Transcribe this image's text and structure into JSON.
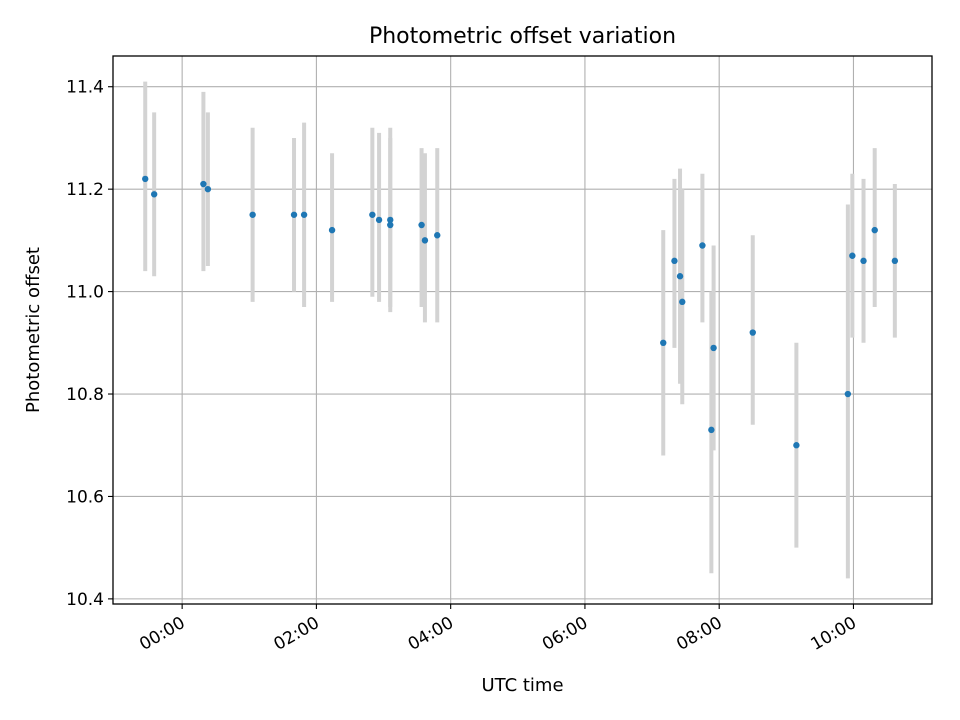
{
  "chart_data": {
    "type": "scatter",
    "title": "Photometric offset variation",
    "xlabel": "UTC time",
    "ylabel": "Photometric offset",
    "x_axis_type": "time",
    "x_tick_labels": [
      "00:00",
      "02:00",
      "04:00",
      "06:00",
      "08:00",
      "10:00"
    ],
    "x_ticks_hours": [
      0,
      2,
      4,
      6,
      8,
      10
    ],
    "y_ticks": [
      10.4,
      10.6,
      10.8,
      11.0,
      11.2,
      11.4
    ],
    "y_tick_labels": [
      "10.4",
      "10.6",
      "10.8",
      "11.0",
      "11.2",
      "11.4"
    ],
    "xlim_hours": [
      -1.03,
      11.17
    ],
    "ylim": [
      10.39,
      11.46
    ],
    "grid": true,
    "point_color": "#1f77b4",
    "errorbar_color": "#d3d3d3",
    "series": [
      {
        "points": [
          {
            "x": "23:27",
            "y": 11.22,
            "lo": 11.04,
            "hi": 11.41
          },
          {
            "x": "23:35",
            "y": 11.19,
            "lo": 11.03,
            "hi": 11.35
          },
          {
            "x": "00:19",
            "y": 11.21,
            "lo": 11.04,
            "hi": 11.39
          },
          {
            "x": "00:23",
            "y": 11.2,
            "lo": 11.05,
            "hi": 11.35
          },
          {
            "x": "01:03",
            "y": 11.15,
            "lo": 10.98,
            "hi": 11.32
          },
          {
            "x": "01:40",
            "y": 11.15,
            "lo": 11.0,
            "hi": 11.3
          },
          {
            "x": "01:49",
            "y": 11.15,
            "lo": 10.97,
            "hi": 11.33
          },
          {
            "x": "02:14",
            "y": 11.12,
            "lo": 10.98,
            "hi": 11.27
          },
          {
            "x": "02:50",
            "y": 11.15,
            "lo": 10.99,
            "hi": 11.32
          },
          {
            "x": "02:56",
            "y": 11.14,
            "lo": 10.98,
            "hi": 11.31
          },
          {
            "x": "03:06",
            "y": 11.14,
            "lo": 10.97,
            "hi": 11.32
          },
          {
            "x": "03:06",
            "y": 11.13,
            "lo": 10.96,
            "hi": 11.3
          },
          {
            "x": "03:34",
            "y": 11.13,
            "lo": 10.97,
            "hi": 11.28
          },
          {
            "x": "03:37",
            "y": 11.1,
            "lo": 10.94,
            "hi": 11.27
          },
          {
            "x": "03:48",
            "y": 11.11,
            "lo": 10.94,
            "hi": 11.28
          },
          {
            "x": "07:10",
            "y": 10.9,
            "lo": 10.68,
            "hi": 11.12
          },
          {
            "x": "07:20",
            "y": 11.06,
            "lo": 10.89,
            "hi": 11.22
          },
          {
            "x": "07:25",
            "y": 11.03,
            "lo": 10.82,
            "hi": 11.24
          },
          {
            "x": "07:27",
            "y": 10.98,
            "lo": 10.78,
            "hi": 11.2
          },
          {
            "x": "07:45",
            "y": 11.09,
            "lo": 10.94,
            "hi": 11.23
          },
          {
            "x": "07:53",
            "y": 10.73,
            "lo": 10.45,
            "hi": 11.0
          },
          {
            "x": "07:55",
            "y": 10.89,
            "lo": 10.69,
            "hi": 11.09
          },
          {
            "x": "08:30",
            "y": 10.92,
            "lo": 10.74,
            "hi": 11.11
          },
          {
            "x": "09:09",
            "y": 10.7,
            "lo": 10.5,
            "hi": 10.9
          },
          {
            "x": "09:55",
            "y": 10.8,
            "lo": 10.44,
            "hi": 11.17
          },
          {
            "x": "09:59",
            "y": 11.07,
            "lo": 10.91,
            "hi": 11.23
          },
          {
            "x": "10:09",
            "y": 11.06,
            "lo": 10.9,
            "hi": 11.22
          },
          {
            "x": "10:19",
            "y": 11.12,
            "lo": 10.97,
            "hi": 11.28
          },
          {
            "x": "10:37",
            "y": 11.06,
            "lo": 10.91,
            "hi": 11.21
          }
        ]
      }
    ]
  }
}
